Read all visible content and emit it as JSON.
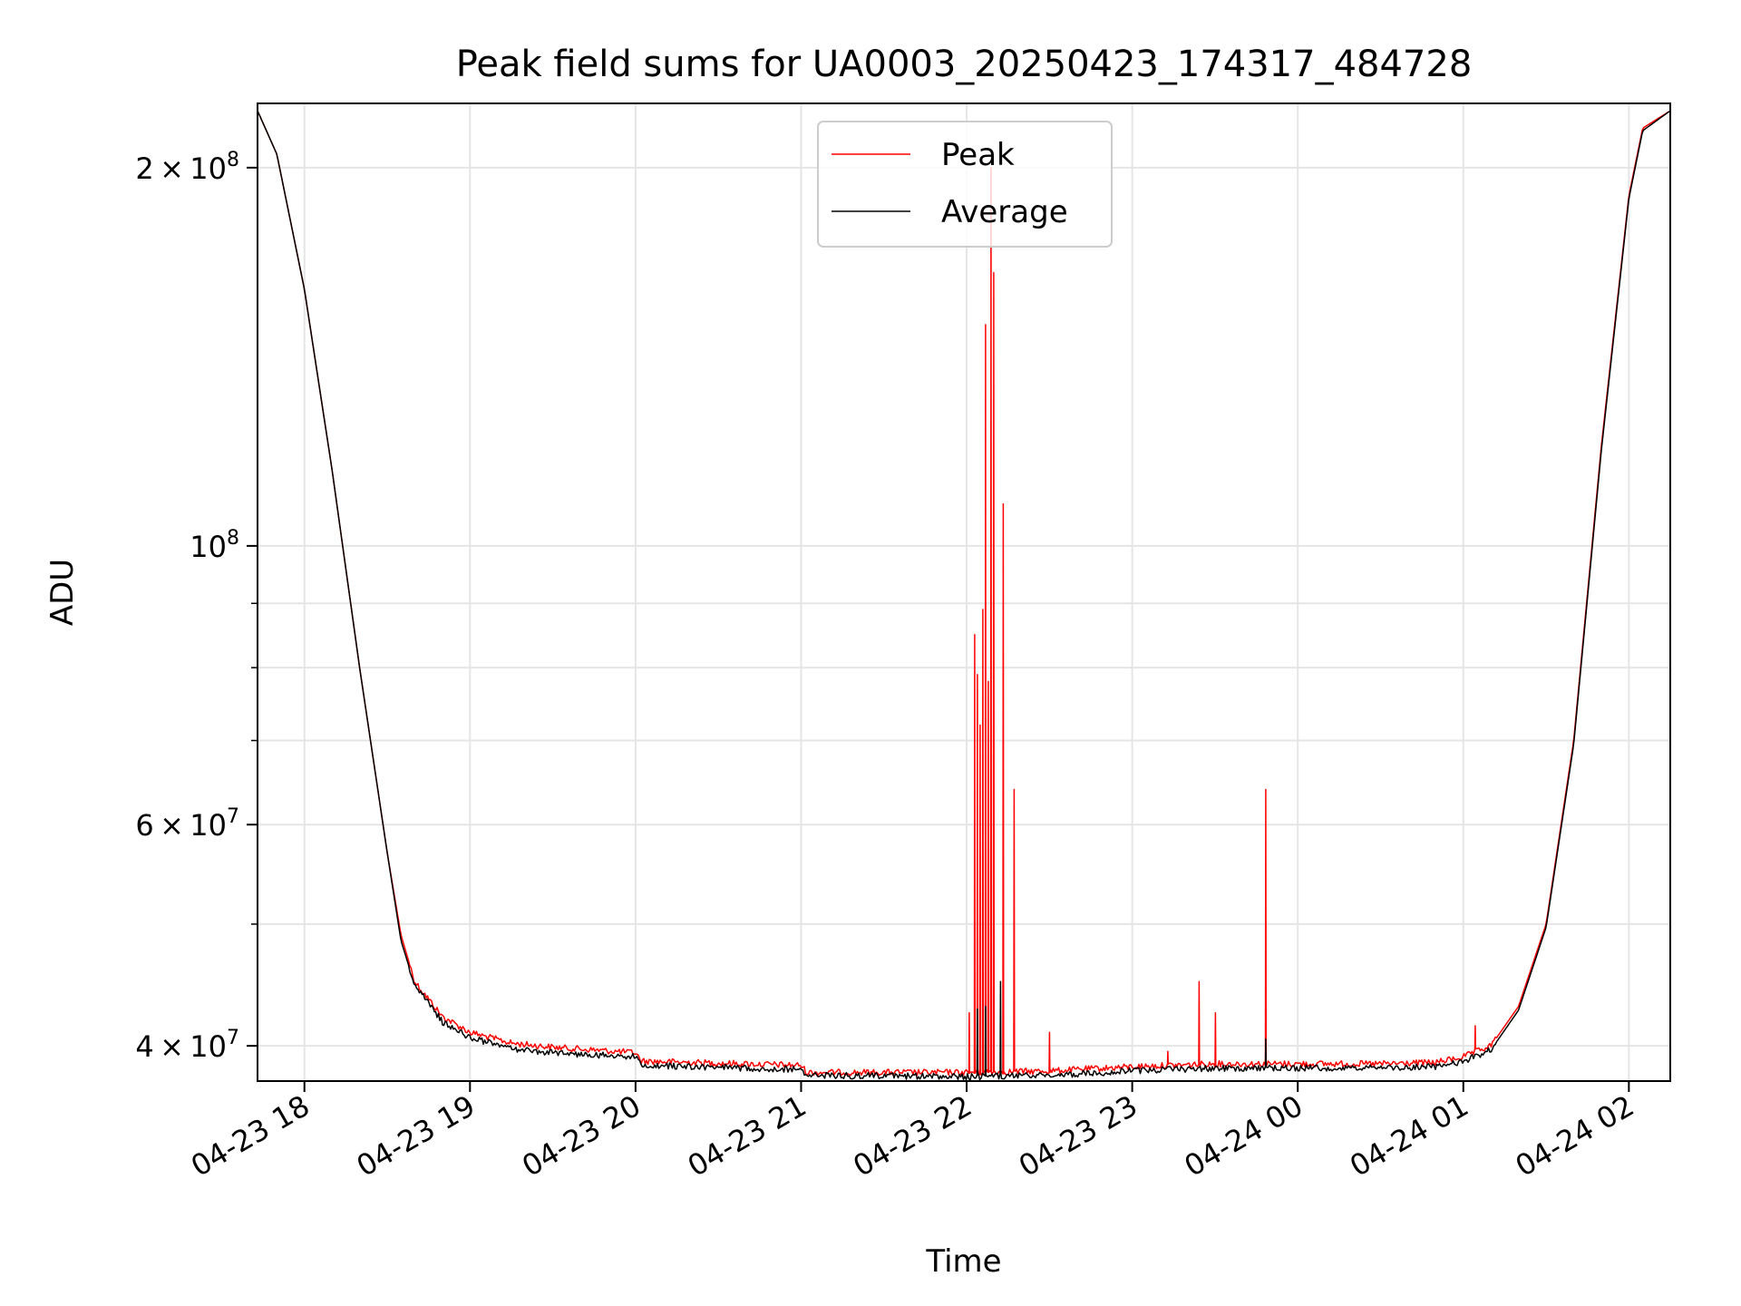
{
  "chart_data": {
    "type": "line",
    "title": "Peak field sums for UA0003_20250423_174317_484728",
    "xlabel": "Time",
    "ylabel": "ADU",
    "y_scale": "log",
    "xlim": [
      "2025-04-23 17:43",
      "2025-04-24 02:15"
    ],
    "ylim": [
      37500000,
      225000000
    ],
    "x_ticks": [
      {
        "t": "2025-04-23 18:00",
        "label": "04-23 18"
      },
      {
        "t": "2025-04-23 19:00",
        "label": "04-23 19"
      },
      {
        "t": "2025-04-23 20:00",
        "label": "04-23 20"
      },
      {
        "t": "2025-04-23 21:00",
        "label": "04-23 21"
      },
      {
        "t": "2025-04-23 22:00",
        "label": "04-23 22"
      },
      {
        "t": "2025-04-23 23:00",
        "label": "04-23 23"
      },
      {
        "t": "2025-04-24 00:00",
        "label": "04-24 00"
      },
      {
        "t": "2025-04-24 01:00",
        "label": "04-24 01"
      },
      {
        "t": "2025-04-24 02:00",
        "label": "04-24 02"
      }
    ],
    "y_ticks": [
      {
        "value": 40000000,
        "mantissa": "4",
        "exponent": "7"
      },
      {
        "value": 60000000,
        "mantissa": "6",
        "exponent": "7"
      },
      {
        "value": 100000000,
        "mantissa": "",
        "exponent": "8"
      },
      {
        "value": 200000000,
        "mantissa": "2",
        "exponent": "8"
      }
    ],
    "y_minor_ticks": [
      50000000,
      70000000,
      80000000,
      90000000
    ],
    "grid": true,
    "legend_position": "upper center",
    "series": [
      {
        "name": "Peak",
        "color": "#ff0000",
        "baseline": [
          [
            "2025-04-23 17:43",
            222000000
          ],
          [
            "2025-04-23 17:50",
            205000000
          ],
          [
            "2025-04-23 18:00",
            160000000
          ],
          [
            "2025-04-23 18:10",
            115000000
          ],
          [
            "2025-04-23 18:20",
            80000000
          ],
          [
            "2025-04-23 18:30",
            57000000
          ],
          [
            "2025-04-23 18:35",
            49000000
          ],
          [
            "2025-04-23 18:40",
            45000000
          ],
          [
            "2025-04-23 18:50",
            42200000
          ],
          [
            "2025-04-23 19:00",
            41000000
          ],
          [
            "2025-04-23 19:15",
            40200000
          ],
          [
            "2025-04-23 19:30",
            39900000
          ],
          [
            "2025-04-23 20:00",
            39500000
          ],
          [
            "2025-04-23 20:02",
            38900000
          ],
          [
            "2025-04-23 21:00",
            38600000
          ],
          [
            "2025-04-23 21:02",
            38100000
          ],
          [
            "2025-04-23 22:00",
            38100000
          ],
          [
            "2025-04-23 22:30",
            38200000
          ],
          [
            "2025-04-23 23:00",
            38500000
          ],
          [
            "2025-04-23 23:30",
            38700000
          ],
          [
            "2025-04-24 00:00",
            38700000
          ],
          [
            "2025-04-24 00:30",
            38700000
          ],
          [
            "2025-04-24 00:50",
            38800000
          ],
          [
            "2025-04-24 01:00",
            39200000
          ],
          [
            "2025-04-24 01:10",
            40000000
          ],
          [
            "2025-04-24 01:20",
            43000000
          ],
          [
            "2025-04-24 01:30",
            50000000
          ],
          [
            "2025-04-24 01:40",
            70000000
          ],
          [
            "2025-04-24 01:50",
            120000000
          ],
          [
            "2025-04-24 02:00",
            190000000
          ],
          [
            "2025-04-24 02:05",
            215000000
          ],
          [
            "2025-04-24 02:15",
            222000000
          ]
        ],
        "spikes": [
          [
            "2025-04-23 22:01",
            42500000
          ],
          [
            "2025-04-23 22:03",
            85000000
          ],
          [
            "2025-04-23 22:04",
            79000000
          ],
          [
            "2025-04-23 22:05",
            72000000
          ],
          [
            "2025-04-23 22:06",
            89000000
          ],
          [
            "2025-04-23 22:07",
            150000000
          ],
          [
            "2025-04-23 22:08",
            78000000
          ],
          [
            "2025-04-23 22:09",
            200000000
          ],
          [
            "2025-04-23 22:10",
            165000000
          ],
          [
            "2025-04-23 22:13",
            108000000
          ],
          [
            "2025-04-23 22:17",
            64000000
          ],
          [
            "2025-04-23 22:30",
            41000000
          ],
          [
            "2025-04-23 23:13",
            39600000
          ],
          [
            "2025-04-23 23:24",
            45000000
          ],
          [
            "2025-04-23 23:30",
            42500000
          ],
          [
            "2025-04-23 23:48",
            64000000
          ],
          [
            "2025-04-24 01:04",
            41500000
          ]
        ]
      },
      {
        "name": "Average",
        "color": "#000000",
        "baseline": [
          [
            "2025-04-23 17:43",
            222000000
          ],
          [
            "2025-04-23 17:50",
            205000000
          ],
          [
            "2025-04-23 18:00",
            160000000
          ],
          [
            "2025-04-23 18:10",
            115000000
          ],
          [
            "2025-04-23 18:20",
            80000000
          ],
          [
            "2025-04-23 18:30",
            57000000
          ],
          [
            "2025-04-23 18:35",
            48500000
          ],
          [
            "2025-04-23 18:40",
            44700000
          ],
          [
            "2025-04-23 18:50",
            41800000
          ],
          [
            "2025-04-23 19:00",
            40600000
          ],
          [
            "2025-04-23 19:15",
            39800000
          ],
          [
            "2025-04-23 19:30",
            39500000
          ],
          [
            "2025-04-23 20:00",
            39200000
          ],
          [
            "2025-04-23 20:02",
            38600000
          ],
          [
            "2025-04-23 21:00",
            38300000
          ],
          [
            "2025-04-23 21:02",
            37900000
          ],
          [
            "2025-04-23 22:00",
            37800000
          ],
          [
            "2025-04-23 22:30",
            37900000
          ],
          [
            "2025-04-23 23:00",
            38200000
          ],
          [
            "2025-04-23 23:30",
            38400000
          ],
          [
            "2025-04-24 00:00",
            38400000
          ],
          [
            "2025-04-24 00:30",
            38400000
          ],
          [
            "2025-04-24 00:50",
            38500000
          ],
          [
            "2025-04-24 01:00",
            38900000
          ],
          [
            "2025-04-24 01:10",
            39700000
          ],
          [
            "2025-04-24 01:20",
            42700000
          ],
          [
            "2025-04-24 01:30",
            49700000
          ],
          [
            "2025-04-24 01:40",
            69500000
          ],
          [
            "2025-04-24 01:50",
            119000000
          ],
          [
            "2025-04-24 02:00",
            189000000
          ],
          [
            "2025-04-24 02:05",
            214000000
          ],
          [
            "2025-04-24 02:15",
            222000000
          ]
        ],
        "spikes": [
          [
            "2025-04-23 22:04",
            42800000
          ],
          [
            "2025-04-23 22:07",
            43000000
          ],
          [
            "2025-04-23 22:12",
            45000000
          ],
          [
            "2025-04-23 23:48",
            40500000
          ]
        ]
      }
    ]
  }
}
